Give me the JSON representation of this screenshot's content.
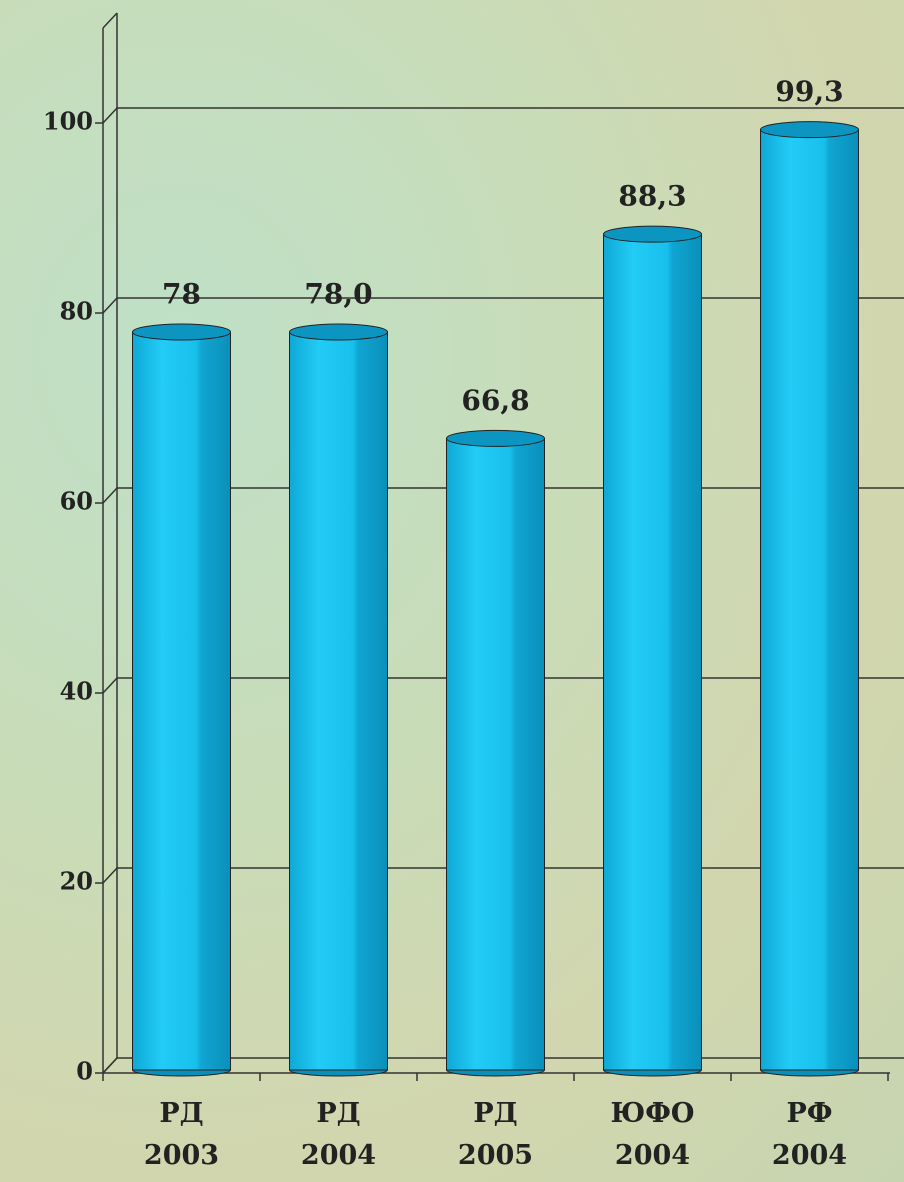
{
  "chart_data": {
    "type": "bar",
    "categories": [
      "РД\n2003",
      "РД\n2004",
      "РД\n2005",
      "ЮФО\n2004",
      "РФ\n2004"
    ],
    "values": [
      78,
      78.0,
      66.8,
      88.3,
      99.3
    ],
    "value_labels": [
      "78",
      "78,0",
      "66,8",
      "88,3",
      "99,3"
    ],
    "color": "#19c3ee",
    "ylim": [
      0,
      110
    ],
    "yticks": [
      0,
      20,
      40,
      60,
      80,
      100
    ],
    "grid": true
  }
}
